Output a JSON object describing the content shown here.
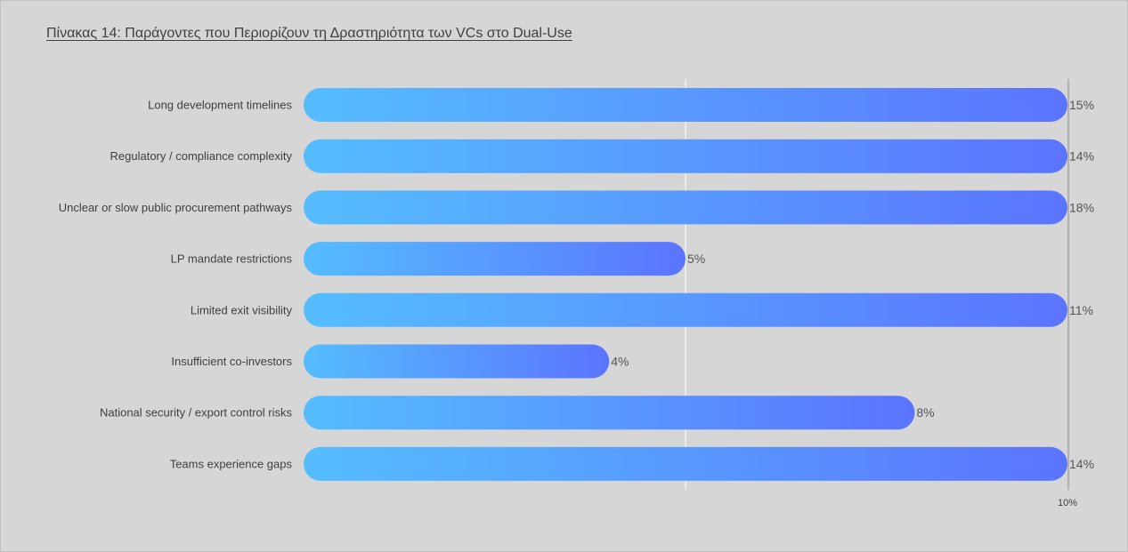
{
  "title": "Πίνακας 14: Παράγοντες που Περιορίζουν τη Δραστηριότητα των VCs στο Dual-Use",
  "chart_data": {
    "type": "bar",
    "orientation": "horizontal",
    "title": "Πίνακας 14: Παράγοντες που Περιορίζουν τη Δραστηριότητα των VCs στο Dual-Use",
    "xlabel": "",
    "ylabel": "",
    "categories": [
      "Long development timelines",
      "Regulatory / compliance complexity",
      "Unclear or slow public procurement pathways",
      "LP mandate restrictions",
      "Limited exit visibility",
      "Insufficient co-investors",
      "National security /  export control risks",
      "Teams experience gaps"
    ],
    "values": [
      15,
      14,
      18,
      5,
      11,
      4,
      8,
      14
    ],
    "value_labels": [
      "15%",
      "14%",
      "18%",
      "5%",
      "11%",
      "4%",
      "8%",
      "14%"
    ],
    "xlim": [
      0,
      10
    ],
    "x_ticks": [
      {
        "value": 10,
        "label": "10%"
      }
    ],
    "gridline_at": 5,
    "clipped_at_axis_max": true,
    "bar_gradient": [
      "#55bdff",
      "#5b74ff"
    ],
    "label_color": "#404040",
    "value_color": "#555555"
  }
}
